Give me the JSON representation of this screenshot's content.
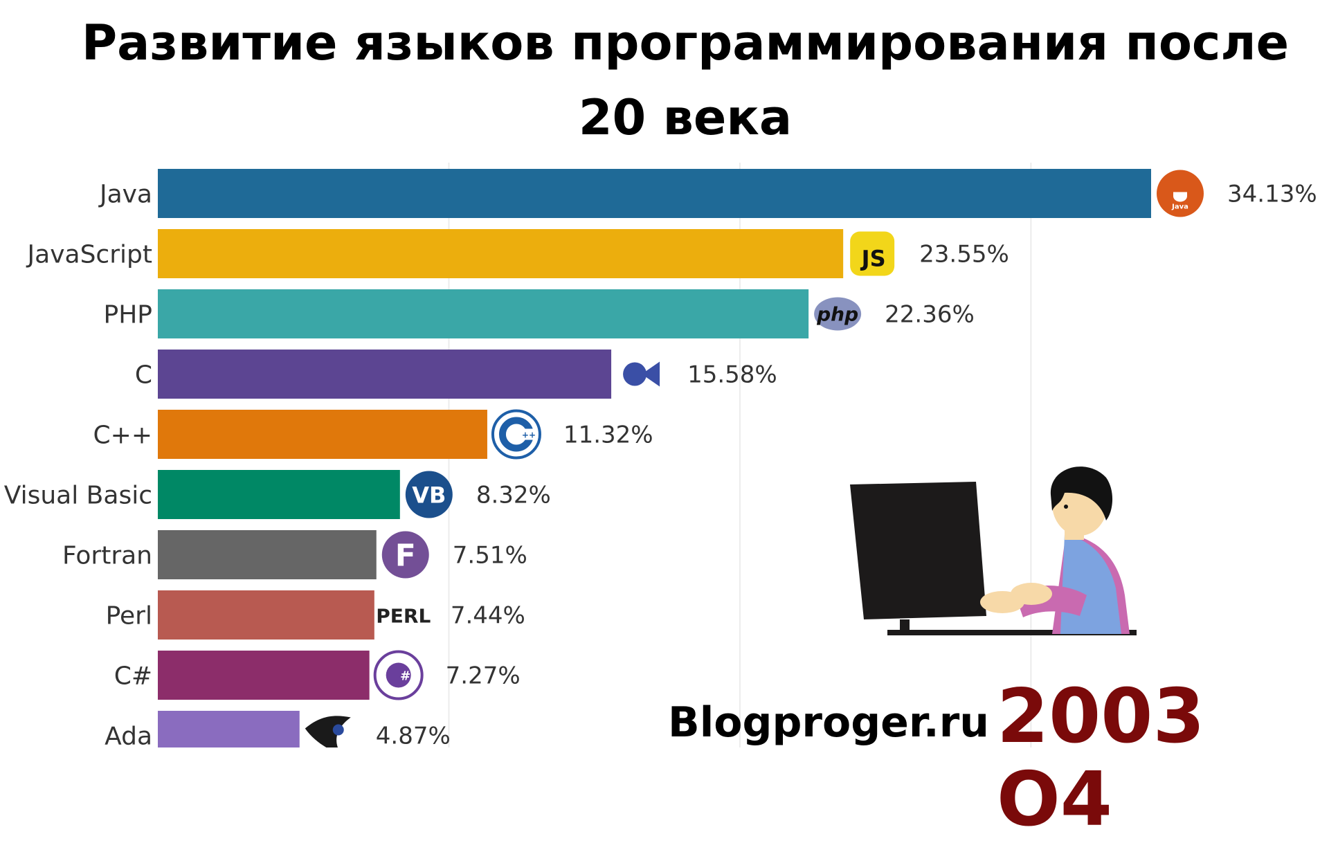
{
  "title": "Развитие языков программирования после 20 века",
  "watermark": "Blogproger.ru",
  "period": "2003 O4",
  "chart_data": {
    "type": "bar",
    "orientation": "horizontal",
    "title": "Развитие языков программирования после 20 века",
    "categories": [
      "Java",
      "JavaScript",
      "PHP",
      "C",
      "C++",
      "Visual Basic",
      "Fortran",
      "Perl",
      "C#",
      "Ada"
    ],
    "values": [
      34.13,
      23.55,
      22.36,
      15.58,
      11.32,
      8.32,
      7.51,
      7.44,
      7.27,
      4.87
    ],
    "value_labels": [
      "34.13%",
      "23.55%",
      "22.36%",
      "15.58%",
      "11.32%",
      "8.32%",
      "7.51%",
      "7.44%",
      "7.27%",
      "4.87%"
    ],
    "colors": [
      "#1f6a97",
      "#ecae0d",
      "#3aa7a7",
      "#5c4592",
      "#e0780b",
      "#008865",
      "#666666",
      "#b85a51",
      "#8c2d6a",
      "#8a6cbf"
    ],
    "icons": [
      "java-icon",
      "javascript-icon",
      "php-icon",
      "c-icon",
      "cpp-icon",
      "visual-basic-icon",
      "fortran-icon",
      "perl-icon",
      "csharp-icon",
      "ada-icon"
    ],
    "icon_texts": [
      "Java",
      "JS",
      "php",
      "",
      "",
      "VB",
      "F",
      "PERL",
      "#",
      ""
    ],
    "xlim": [
      0,
      34.13
    ],
    "grid": true,
    "ylabel": "",
    "xlabel": ""
  }
}
